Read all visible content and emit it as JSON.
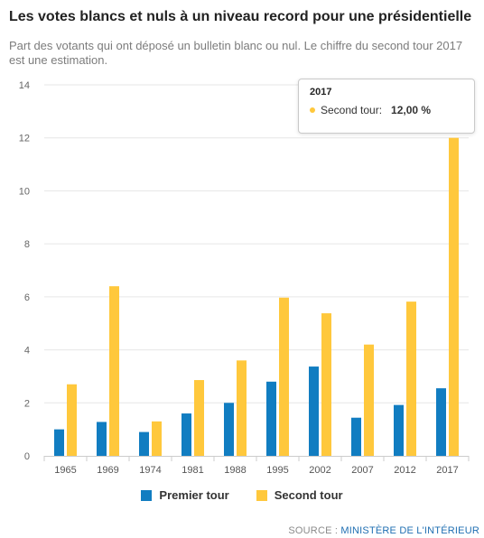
{
  "header": {
    "title": "Les votes blancs et nuls à un niveau record pour une présidentielle",
    "subtitle": "Part des votants qui ont déposé un bulletin blanc ou nul. Le chiffre du second tour 2017 est une estimation."
  },
  "colors": {
    "premier": "#117dc1",
    "second": "#ffc83c",
    "grid": "#e6e6e6",
    "axis": "#cccccc"
  },
  "chart_data": {
    "type": "bar",
    "title": "Les votes blancs et nuls à un niveau record pour une présidentielle",
    "categories": [
      "1965",
      "1969",
      "1974",
      "1981",
      "1988",
      "1995",
      "2002",
      "2007",
      "2012",
      "2017"
    ],
    "series": [
      {
        "name": "Premier tour",
        "values": [
          1.0,
          1.28,
          0.9,
          1.6,
          2.0,
          2.8,
          3.37,
          1.44,
          1.92,
          2.55
        ]
      },
      {
        "name": "Second tour",
        "values": [
          2.7,
          6.4,
          1.3,
          2.86,
          3.6,
          5.97,
          5.38,
          4.2,
          5.82,
          12.0
        ]
      }
    ],
    "ylim": [
      0,
      14
    ],
    "yticks": [
      0,
      2,
      4,
      6,
      8,
      10,
      12,
      14
    ],
    "grid": true,
    "legend": "bottom"
  },
  "tooltip": {
    "title": "2017",
    "label": "Second tour:",
    "value": "12,00 %"
  },
  "source": {
    "prefix": "SOURCE : ",
    "org": "MINISTÈRE DE L'INTÉRIEUR"
  }
}
